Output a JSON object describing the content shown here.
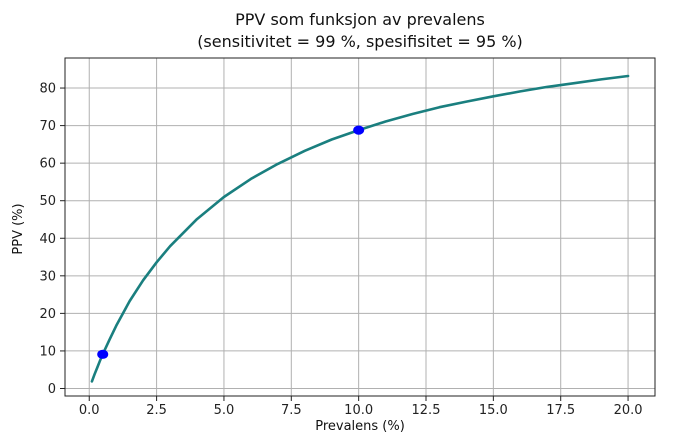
{
  "chart_data": {
    "type": "line",
    "title": "PPV som funksjon av prevalens",
    "subtitle": "(sensitivitet = 99 %, spesifisitet = 95 %)",
    "xlabel": "Prevalens (%)",
    "ylabel": "PPV (%)",
    "xlim": [
      -0.9,
      21
    ],
    "ylim": [
      -2,
      88
    ],
    "grid": true,
    "xticks": [
      0.0,
      2.5,
      5.0,
      7.5,
      10.0,
      12.5,
      15.0,
      17.5,
      20.0
    ],
    "xtick_labels": [
      "0.0",
      "2.5",
      "5.0",
      "7.5",
      "10.0",
      "12.5",
      "15.0",
      "17.5",
      "20.0"
    ],
    "yticks": [
      0,
      10,
      20,
      30,
      40,
      50,
      60,
      70,
      80
    ],
    "ytick_labels": [
      "0",
      "10",
      "20",
      "30",
      "40",
      "50",
      "60",
      "70",
      "80"
    ],
    "series": [
      {
        "color": "#1a7f7f",
        "x": [
          0.1,
          0.2,
          0.3,
          0.4,
          0.5,
          0.75,
          1.0,
          1.5,
          2.0,
          2.5,
          3.0,
          4.0,
          5.0,
          6.0,
          7.0,
          8.0,
          9.0,
          10.0,
          11.0,
          12.0,
          13.0,
          14.0,
          15.0,
          16.0,
          17.0,
          18.0,
          19.0,
          20.0
        ],
        "y": [
          1.9,
          3.8,
          5.6,
          7.4,
          9.1,
          13.0,
          16.7,
          23.3,
          28.8,
          33.6,
          37.9,
          45.1,
          51.0,
          55.8,
          59.8,
          63.3,
          66.3,
          68.8,
          71.1,
          73.1,
          74.9,
          76.4,
          77.8,
          79.1,
          80.3,
          81.3,
          82.3,
          83.2
        ]
      }
    ],
    "points": [
      {
        "x": 0.5,
        "y": 9.1,
        "color": "#0000ff"
      },
      {
        "x": 10.0,
        "y": 68.8,
        "color": "#0000ff"
      }
    ]
  }
}
